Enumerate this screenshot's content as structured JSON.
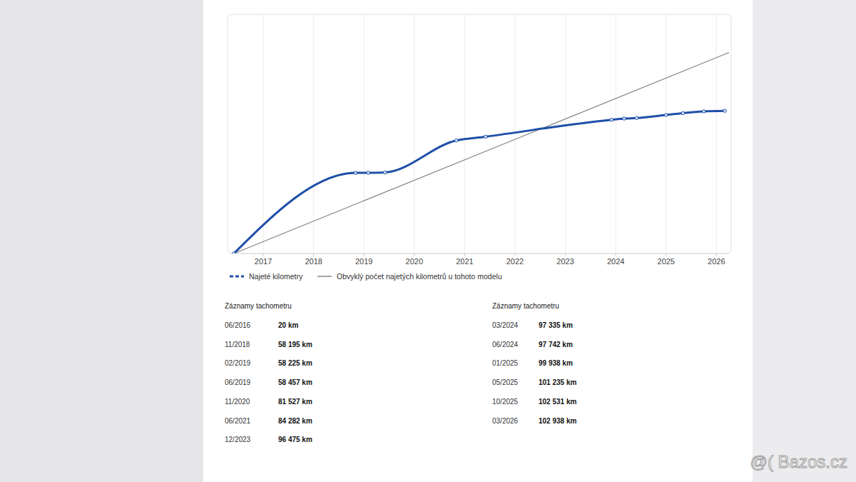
{
  "chart_data": {
    "type": "line",
    "xlim": [
      "2016-05",
      "2026-04"
    ],
    "xticks": [
      {
        "value": "2017-01",
        "label": "2017"
      },
      {
        "value": "2018-01",
        "label": "2018"
      },
      {
        "value": "2019-01",
        "label": "2019"
      },
      {
        "value": "2020-01",
        "label": "2020"
      },
      {
        "value": "2021-01",
        "label": "2021"
      },
      {
        "value": "2022-01",
        "label": "2022"
      },
      {
        "value": "2023-01",
        "label": "2023"
      },
      {
        "value": "2024-01",
        "label": "2024"
      },
      {
        "value": "2025-01",
        "label": "2025"
      },
      {
        "value": "2026-01",
        "label": "2026"
      }
    ],
    "ylim": [
      0,
      170000
    ],
    "tick_labels": "x",
    "grid": true,
    "legend": "bottom",
    "series": [
      {
        "name": "Najeté kilometry",
        "color": "#1f4fa8",
        "marker": "circle",
        "line_style": "solid",
        "x": [
          "2016-06",
          "2018-11",
          "2019-02",
          "2019-06",
          "2020-11",
          "2021-06",
          "2023-12",
          "2024-03",
          "2024-06",
          "2025-01",
          "2025-05",
          "2025-10",
          "2026-03"
        ],
        "values": [
          20,
          58195,
          58225,
          58457,
          81527,
          84282,
          96475,
          97335,
          97742,
          99938,
          101235,
          102531,
          102938
        ]
      },
      {
        "name": "Obvyklý počet najetých kilometrů u tohoto modelu",
        "color": "#8a8a8a",
        "line_style": "solid",
        "x": [
          "2016-06",
          "2026-04"
        ],
        "values": [
          0,
          145000
        ]
      }
    ]
  },
  "tables": [
    {
      "title": "Záznamy tachometru",
      "rows": [
        [
          "06/2016",
          "20 km"
        ],
        [
          "11/2018",
          "58 195 km"
        ],
        [
          "02/2019",
          "58 225 km"
        ],
        [
          "06/2019",
          "58 457 km"
        ],
        [
          "11/2020",
          "81 527 km"
        ],
        [
          "06/2021",
          "84 282 km"
        ],
        [
          "12/2023",
          "96 475 km"
        ]
      ]
    },
    {
      "title": "Záznamy tachometru",
      "rows": [
        [
          "03/2024",
          "97 335 km"
        ],
        [
          "06/2024",
          "97 742 km"
        ],
        [
          "01/2025",
          "99 938 km"
        ],
        [
          "05/2025",
          "101 235 km"
        ],
        [
          "10/2025",
          "102 531 km"
        ],
        [
          "03/2026",
          "102 938 km"
        ]
      ]
    }
  ],
  "watermark": "@( Bazos.cz"
}
